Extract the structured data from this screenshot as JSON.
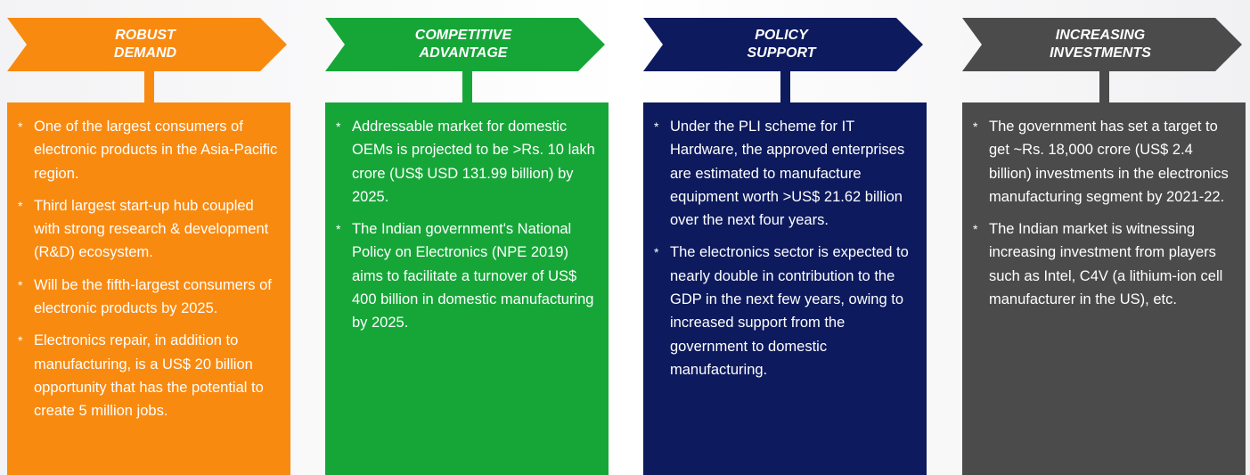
{
  "columns": [
    {
      "title": [
        "ROBUST",
        "DEMAND"
      ],
      "color": "#f98a10",
      "bullets": [
        "One of the largest consumers of electronic products in the Asia-Pacific region.",
        "Third largest start-up hub coupled with strong research & development (R&D) ecosystem.",
        "Will be the fifth-largest consumers of electronic products by 2025.",
        "Electronics repair, in addition to manufacturing, is a US$ 20 billion opportunity that has the potential to create 5 million jobs."
      ]
    },
    {
      "title": [
        "COMPETITIVE",
        "ADVANTAGE"
      ],
      "color": "#16a638",
      "bullets": [
        "Addressable market for domestic OEMs is projected to be >Rs. 10 lakh crore (US$ USD 131.99 billion) by 2025.",
        "The Indian government's National Policy on Electronics (NPE 2019) aims to facilitate a turnover of US$ 400 billion in domestic manufacturing by 2025."
      ]
    },
    {
      "title": [
        "POLICY",
        "SUPPORT"
      ],
      "color": "#0d1a5e",
      "bullets": [
        "Under the PLI scheme for IT Hardware, the approved enterprises are estimated to manufacture equipment worth >US$ 21.62 billion over the next four years.",
        "The electronics sector is expected to nearly double in contribution to the GDP in the next few years, owing to increased support from the government to domestic manufacturing."
      ]
    },
    {
      "title": [
        "INCREASING",
        "INVESTMENTS"
      ],
      "color": "#4b4b4b",
      "bullets": [
        "The government has set a target to get ~Rs. 18,000 crore (US$ 2.4 billion) investments in the electronics manufacturing segment by 2021-22.",
        "The Indian market is witnessing increasing investment from players such as Intel, C4V (a lithium-ion cell manufacturer in the US), etc."
      ]
    }
  ]
}
